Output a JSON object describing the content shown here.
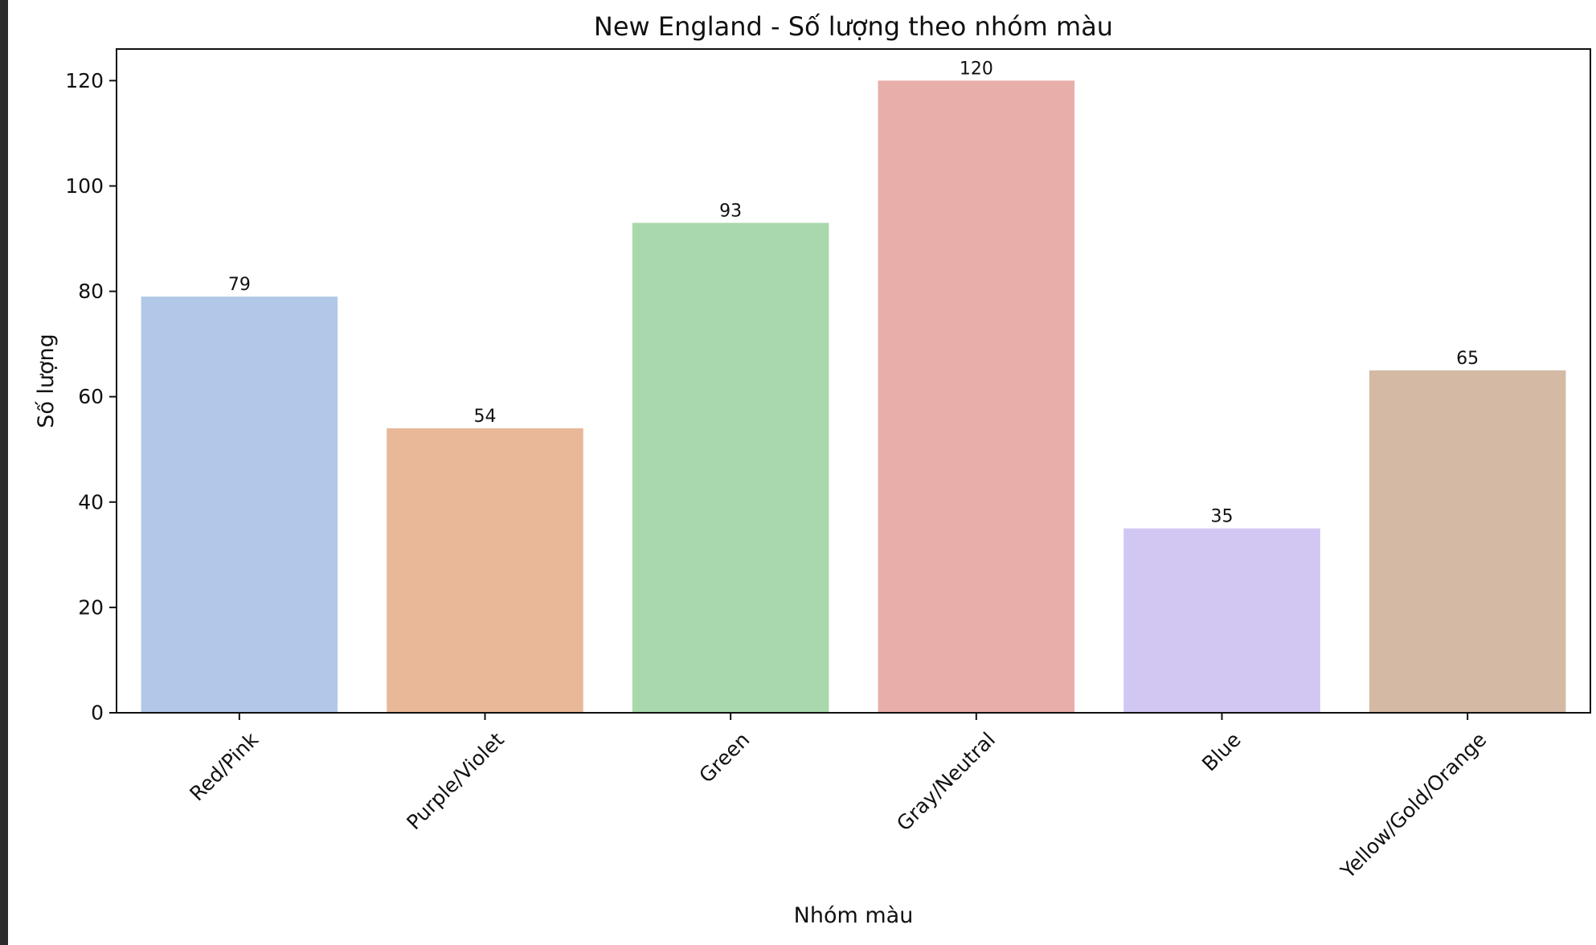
{
  "chart_data": {
    "type": "bar",
    "title": "New England - Số lượng theo nhóm màu",
    "xlabel": "Nhóm màu",
    "ylabel": "Số lượng",
    "categories": [
      "Red/Pink",
      "Purple/Violet",
      "Green",
      "Gray/Neutral",
      "Blue",
      "Yellow/Gold/Orange"
    ],
    "values": [
      79,
      54,
      93,
      120,
      35,
      65
    ],
    "data_labels": [
      "79",
      "54",
      "93",
      "120",
      "35",
      "65"
    ],
    "colors": [
      "#b2c8e8",
      "#e8b898",
      "#a8d8ac",
      "#e8aeaa",
      "#d2c6f2",
      "#d4baa4"
    ],
    "ylim": [
      0,
      126
    ],
    "yticks": [
      0,
      20,
      40,
      60,
      80,
      100,
      120
    ],
    "ytick_labels": [
      "0",
      "20",
      "40",
      "60",
      "80",
      "100",
      "120"
    ],
    "grid": false,
    "legend": false
  }
}
